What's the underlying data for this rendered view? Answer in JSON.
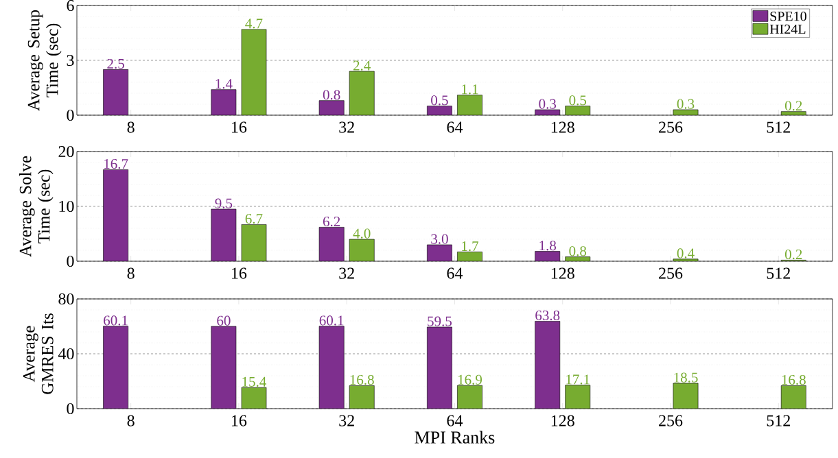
{
  "chart_data": [
    {
      "type": "bar",
      "ylabel": "Average Setup Time (sec)",
      "categories": [
        "8",
        "16",
        "32",
        "64",
        "128",
        "256",
        "512"
      ],
      "ylim": [
        0,
        6
      ],
      "yticks": [
        0,
        3,
        6
      ],
      "grid": "y",
      "legend": "top right",
      "series": [
        {
          "name": "SPE10",
          "color": "#7e2f8e",
          "values": [
            2.5,
            1.4,
            0.8,
            0.5,
            0.3,
            null,
            null
          ],
          "value_labels": [
            "2.5",
            "1.4",
            "0.8",
            "0.5",
            "0.3",
            null,
            null
          ]
        },
        {
          "name": "HI24L",
          "color": "#77ac30",
          "values": [
            null,
            4.7,
            2.4,
            1.1,
            0.5,
            0.3,
            0.2
          ],
          "value_labels": [
            null,
            "4.7",
            "2.4",
            "1.1",
            "0.5",
            "0.3",
            "0.2"
          ]
        }
      ]
    },
    {
      "type": "bar",
      "ylabel": "Average Solve Time (sec)",
      "categories": [
        "8",
        "16",
        "32",
        "64",
        "128",
        "256",
        "512"
      ],
      "ylim": [
        0,
        20
      ],
      "yticks": [
        0,
        10,
        20
      ],
      "grid": "y",
      "series": [
        {
          "color": "#7e2f8e",
          "values": [
            16.7,
            9.5,
            6.2,
            3.0,
            1.8,
            null,
            null
          ],
          "value_labels": [
            "16.7",
            "9.5",
            "6.2",
            "3.0",
            "1.8",
            null,
            null
          ]
        },
        {
          "color": "#77ac30",
          "values": [
            null,
            6.7,
            4.0,
            1.7,
            0.8,
            0.4,
            0.2
          ],
          "value_labels": [
            null,
            "6.7",
            "4.0",
            "1.7",
            "0.8",
            "0.4",
            "0.2"
          ]
        }
      ]
    },
    {
      "type": "bar",
      "ylabel": "Average GMRES Its",
      "xlabel": "MPI Ranks",
      "categories": [
        "8",
        "16",
        "32",
        "64",
        "128",
        "256",
        "512"
      ],
      "ylim": [
        0,
        80
      ],
      "yticks": [
        0,
        40,
        80
      ],
      "grid": "y",
      "series": [
        {
          "color": "#7e2f8e",
          "values": [
            60.1,
            60,
            60.1,
            59.5,
            63.8,
            null,
            null
          ],
          "value_labels": [
            "60.1",
            "60",
            "60.1",
            "59.5",
            "63.8",
            null,
            null
          ]
        },
        {
          "color": "#77ac30",
          "values": [
            null,
            15.4,
            16.8,
            16.9,
            17.1,
            18.5,
            16.8
          ],
          "value_labels": [
            null,
            "15.4",
            "16.8",
            "16.9",
            "17.1",
            "18.5",
            "16.8"
          ]
        }
      ]
    }
  ]
}
